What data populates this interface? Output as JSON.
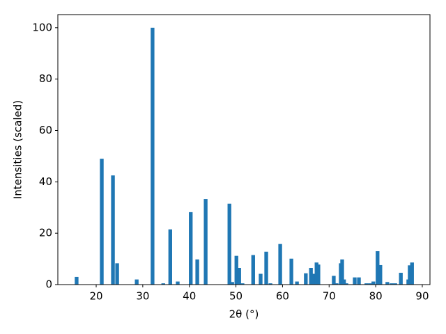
{
  "chart_data": {
    "type": "bar",
    "xlabel": "2θ (°)",
    "ylabel": "Intensities (scaled)",
    "x": [
      15.8,
      21.2,
      23.6,
      24.5,
      28.7,
      32.1,
      34.4,
      35.9,
      37.5,
      40.3,
      41.7,
      43.5,
      48.6,
      49.2,
      50.1,
      50.7,
      51.4,
      53.7,
      55.3,
      56.5,
      57.4,
      59.5,
      61.9,
      63.1,
      65.0,
      66.1,
      66.7,
      67.3,
      67.7,
      71.0,
      71.6,
      72.5,
      72.8,
      73.2,
      73.7,
      75.5,
      76.4,
      78.0,
      78.8,
      79.5,
      80.4,
      81.0,
      82.5,
      83.4,
      84.2,
      85.4,
      87.0,
      87.3,
      87.8
    ],
    "values": [
      3,
      49,
      42.5,
      8.3,
      2,
      100,
      0.5,
      21.5,
      1.2,
      28.2,
      9.8,
      33.3,
      31.5,
      1,
      11.2,
      6.5,
      0.5,
      11.5,
      4.2,
      12.8,
      0.5,
      15.8,
      10.1,
      1.2,
      4.4,
      6.5,
      4.2,
      8.6,
      7.8,
      3.4,
      0.5,
      8.3,
      9.8,
      2,
      0.5,
      2.8,
      2.8,
      0.5,
      0.5,
      1.2,
      13,
      7.6,
      1,
      0.5,
      0.5,
      4.6,
      2,
      7.5,
      8.6
    ],
    "color": "#1f77b4",
    "xlim": [
      11.77,
      91.65
    ],
    "xticks": [
      20,
      30,
      40,
      50,
      60,
      70,
      80,
      90
    ],
    "ylim": [
      0,
      105.1
    ],
    "yticks": [
      0,
      20,
      40,
      60,
      80,
      100
    ]
  }
}
